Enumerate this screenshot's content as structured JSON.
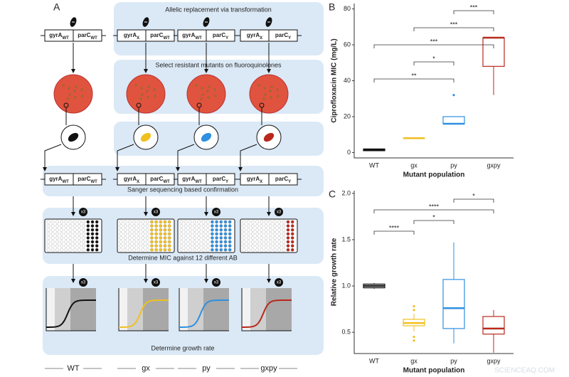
{
  "diagram": {
    "panel": "A",
    "steps": [
      "Allelic replacement via transformation",
      "Select resistant mutants on fluoroquinolones",
      "Sanger sequencing based confirmation",
      "Determine MIC against 12 different AB",
      "Determine growth rate"
    ],
    "genes": [
      "gyrA",
      "parC"
    ],
    "genotypes": [
      [
        "WT",
        "WT"
      ],
      [
        "X",
        "WT"
      ],
      [
        "WT",
        "Y"
      ],
      [
        "X",
        "Y"
      ]
    ],
    "replicates": "x3",
    "strains": [
      {
        "label": "WT",
        "color": "#111111"
      },
      {
        "label": "gx",
        "color": "#f0c020"
      },
      {
        "label": "py",
        "color": "#2f8fe0"
      },
      {
        "label": "gxpy",
        "color": "#b8281c"
      }
    ]
  },
  "chart_data": [
    {
      "type": "box",
      "panel": "B",
      "y_label": "Ciprofloxacin MIC (mg/L)",
      "x_label": "Mutant population",
      "categories": [
        "WT",
        "gx",
        "py",
        "gxpy"
      ],
      "boxes": [
        {
          "color": "#111111",
          "low": 1,
          "q1": 1,
          "median": 1.5,
          "q3": 2,
          "high": 2,
          "outliers": []
        },
        {
          "color": "#f0c020",
          "low": 8,
          "q1": 8,
          "median": 8,
          "q3": 8,
          "high": 8,
          "outliers": []
        },
        {
          "color": "#2f8fe0",
          "low": 16,
          "q1": 16,
          "median": 16,
          "q3": 20,
          "high": 20,
          "outliers": [
            32
          ]
        },
        {
          "color": "#b8281c",
          "low": 32,
          "q1": 48,
          "median": 64,
          "q3": 64,
          "high": 64,
          "outliers": []
        }
      ],
      "ylim": [
        -3,
        83
      ],
      "yticks": [
        0,
        20,
        40,
        60,
        80
      ],
      "significance": [
        {
          "between": [
            "WT",
            "py"
          ],
          "label": "**"
        },
        {
          "between": [
            "gx",
            "py"
          ],
          "label": "*"
        },
        {
          "between": [
            "WT",
            "gxpy"
          ],
          "label": "***"
        },
        {
          "between": [
            "gx",
            "gxpy"
          ],
          "label": "***"
        },
        {
          "between": [
            "py",
            "gxpy"
          ],
          "label": "***"
        }
      ]
    },
    {
      "type": "box",
      "panel": "C",
      "y_label": "Relative growth rate",
      "x_label": "Mutant population",
      "categories": [
        "WT",
        "gx",
        "py",
        "gxpy"
      ],
      "boxes": [
        {
          "color": "#111111",
          "low": 0.97,
          "q1": 0.98,
          "median": 1.0,
          "q3": 1.02,
          "high": 1.03,
          "outliers": []
        },
        {
          "color": "#f0c020",
          "low": 0.51,
          "q1": 0.57,
          "median": 0.6,
          "q3": 0.64,
          "high": 0.7,
          "outliers": [
            0.41,
            0.45,
            0.74,
            0.78
          ]
        },
        {
          "color": "#2f8fe0",
          "low": 0.38,
          "q1": 0.54,
          "median": 0.76,
          "q3": 1.07,
          "high": 1.47,
          "outliers": []
        },
        {
          "color": "#b8281c",
          "low": 0.28,
          "q1": 0.48,
          "median": 0.54,
          "q3": 0.67,
          "high": 0.74,
          "outliers": []
        }
      ],
      "ylim": [
        0.27,
        2.03
      ],
      "yticks": [
        {
          "value": 0.5,
          "label": "0.5"
        },
        {
          "value": 1,
          "label": "1.0"
        },
        {
          "value": 1.5,
          "label": "1.5"
        },
        {
          "value": 2,
          "label": "2.0"
        }
      ],
      "significance": [
        {
          "between": [
            "WT",
            "gx"
          ],
          "label": "****"
        },
        {
          "between": [
            "gx",
            "py"
          ],
          "label": "*"
        },
        {
          "between": [
            "WT",
            "gxpy"
          ],
          "label": "****"
        },
        {
          "between": [
            "py",
            "gxpy"
          ],
          "label": "*"
        }
      ]
    }
  ],
  "watermark": "SCIENCEAQ.COM"
}
